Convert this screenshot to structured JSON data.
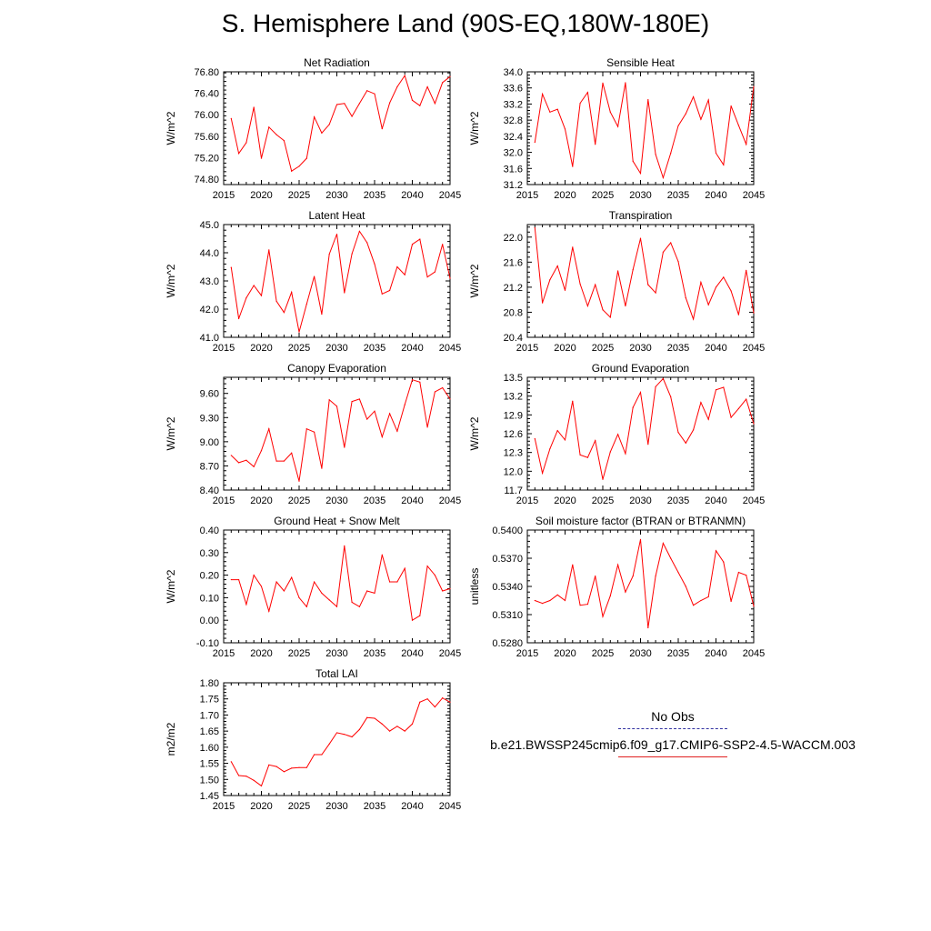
{
  "title": "S. Hemisphere Land (90S-EQ,180W-180E)",
  "colors": {
    "series": "#ff0000",
    "obs": "#3030a0",
    "axis": "#000000"
  },
  "legend": {
    "obs_label": "No Obs",
    "model_label": "b.e21.BWSSP245cmip6.f09_g17.CMIP6-SSP2-4.5-WACCM.003"
  },
  "chart_data": [
    {
      "type": "line",
      "title": "Net Radiation",
      "ylabel": "W/m^2",
      "xlim": [
        2015,
        2045
      ],
      "ylim": [
        74.7,
        76.8
      ],
      "xticks": [
        "2015",
        "2020",
        "2025",
        "2030",
        "2035",
        "2040",
        "2045"
      ],
      "yticks": [
        "74.80",
        "75.20",
        "75.60",
        "76.00",
        "76.40",
        "76.80"
      ],
      "x": [
        2016,
        2017,
        2018,
        2019,
        2020,
        2021,
        2022,
        2023,
        2024,
        2025,
        2026,
        2027,
        2028,
        2029,
        2030,
        2031,
        2032,
        2033,
        2034,
        2035,
        2036,
        2037,
        2038,
        2039,
        2040,
        2041,
        2042,
        2043,
        2044,
        2045
      ],
      "values": [
        75.93,
        75.28,
        75.48,
        76.14,
        75.19,
        75.77,
        75.63,
        75.52,
        74.95,
        75.04,
        75.19,
        75.96,
        75.66,
        75.82,
        76.19,
        76.21,
        75.97,
        76.21,
        76.45,
        76.39,
        75.74,
        76.22,
        76.52,
        76.73,
        76.27,
        76.17,
        76.52,
        76.21,
        76.6,
        76.71
      ]
    },
    {
      "type": "line",
      "title": "Sensible Heat",
      "ylabel": "W/m^2",
      "xlim": [
        2015,
        2045
      ],
      "ylim": [
        31.2,
        34.0
      ],
      "xticks": [
        "2015",
        "2020",
        "2025",
        "2030",
        "2035",
        "2040",
        "2045"
      ],
      "yticks": [
        "31.2",
        "31.6",
        "32.0",
        "32.4",
        "32.8",
        "33.2",
        "33.6",
        "34.0"
      ],
      "x": [
        2016,
        2017,
        2018,
        2019,
        2020,
        2021,
        2022,
        2023,
        2024,
        2025,
        2026,
        2027,
        2028,
        2029,
        2030,
        2031,
        2032,
        2033,
        2034,
        2035,
        2036,
        2037,
        2038,
        2039,
        2040,
        2041,
        2042,
        2043,
        2044,
        2045
      ],
      "values": [
        32.25,
        33.45,
        33.0,
        33.07,
        32.58,
        31.65,
        33.22,
        33.49,
        32.2,
        33.72,
        33.0,
        32.64,
        33.73,
        31.78,
        31.48,
        33.31,
        31.95,
        31.37,
        31.98,
        32.66,
        32.96,
        33.38,
        32.82,
        33.3,
        31.98,
        31.69,
        33.15,
        32.67,
        32.2,
        33.63
      ]
    },
    {
      "type": "line",
      "title": "Latent Heat",
      "ylabel": "W/m^2",
      "xlim": [
        2015,
        2045
      ],
      "ylim": [
        41.0,
        45.0
      ],
      "xticks": [
        "2015",
        "2020",
        "2025",
        "2030",
        "2035",
        "2040",
        "2045"
      ],
      "yticks": [
        "41.0",
        "42.0",
        "43.0",
        "44.0",
        "45.0"
      ],
      "x": [
        2016,
        2017,
        2018,
        2019,
        2020,
        2021,
        2022,
        2023,
        2024,
        2025,
        2026,
        2027,
        2028,
        2029,
        2030,
        2031,
        2032,
        2033,
        2034,
        2035,
        2036,
        2037,
        2038,
        2039,
        2040,
        2041,
        2042,
        2043,
        2044,
        2045
      ],
      "values": [
        43.48,
        41.66,
        42.4,
        42.84,
        42.48,
        44.1,
        42.28,
        41.88,
        42.6,
        41.19,
        42.18,
        43.16,
        41.82,
        43.95,
        44.66,
        42.58,
        43.96,
        44.76,
        44.36,
        43.6,
        42.54,
        42.66,
        43.5,
        43.22,
        44.3,
        44.48,
        43.14,
        43.32,
        44.3,
        43.09
      ]
    },
    {
      "type": "line",
      "title": "Transpiration",
      "ylabel": "W/m^2",
      "xlim": [
        2015,
        2045
      ],
      "ylim": [
        20.4,
        22.2
      ],
      "xticks": [
        "2015",
        "2020",
        "2025",
        "2030",
        "2035",
        "2040",
        "2045"
      ],
      "yticks": [
        "20.4",
        "20.8",
        "21.2",
        "21.6",
        "22.0"
      ],
      "x": [
        2016,
        2017,
        2018,
        2019,
        2020,
        2021,
        2022,
        2023,
        2024,
        2025,
        2026,
        2027,
        2028,
        2029,
        2030,
        2031,
        2032,
        2033,
        2034,
        2035,
        2036,
        2037,
        2038,
        2039,
        2040,
        2041,
        2042,
        2043,
        2044,
        2045
      ],
      "values": [
        22.15,
        20.95,
        21.32,
        21.54,
        21.15,
        21.84,
        21.25,
        20.9,
        21.24,
        20.84,
        20.72,
        21.46,
        20.9,
        21.48,
        21.98,
        21.24,
        21.11,
        21.76,
        21.91,
        21.61,
        21.03,
        20.69,
        21.28,
        20.92,
        21.2,
        21.36,
        21.14,
        20.76,
        21.47,
        20.79
      ]
    },
    {
      "type": "line",
      "title": "Canopy Evaporation",
      "ylabel": "W/m^2",
      "xlim": [
        2015,
        2045
      ],
      "ylim": [
        8.4,
        9.8
      ],
      "xticks": [
        "2015",
        "2020",
        "2025",
        "2030",
        "2035",
        "2040",
        "2045"
      ],
      "yticks": [
        "8.40",
        "8.70",
        "9.00",
        "9.30",
        "9.60"
      ],
      "x": [
        2016,
        2017,
        2018,
        2019,
        2020,
        2021,
        2022,
        2023,
        2024,
        2025,
        2026,
        2027,
        2028,
        2029,
        2030,
        2031,
        2032,
        2033,
        2034,
        2035,
        2036,
        2037,
        2038,
        2039,
        2040,
        2041,
        2042,
        2043,
        2044,
        2045
      ],
      "values": [
        8.83,
        8.74,
        8.77,
        8.69,
        8.89,
        9.16,
        8.76,
        8.76,
        8.86,
        8.51,
        9.16,
        9.12,
        8.67,
        9.52,
        9.44,
        8.93,
        9.5,
        9.53,
        9.28,
        9.38,
        9.06,
        9.35,
        9.13,
        9.46,
        9.77,
        9.74,
        9.18,
        9.62,
        9.67,
        9.53
      ]
    },
    {
      "type": "line",
      "title": "Ground Evaporation",
      "ylabel": "W/m^2",
      "xlim": [
        2015,
        2045
      ],
      "ylim": [
        11.7,
        13.5
      ],
      "xticks": [
        "2015",
        "2020",
        "2025",
        "2030",
        "2035",
        "2040",
        "2045"
      ],
      "yticks": [
        "11.7",
        "12.0",
        "12.3",
        "12.6",
        "12.9",
        "13.2",
        "13.5"
      ],
      "x": [
        2016,
        2017,
        2018,
        2019,
        2020,
        2021,
        2022,
        2023,
        2024,
        2025,
        2026,
        2027,
        2028,
        2029,
        2030,
        2031,
        2032,
        2033,
        2034,
        2035,
        2036,
        2037,
        2038,
        2039,
        2040,
        2041,
        2042,
        2043,
        2044,
        2045
      ],
      "values": [
        12.52,
        11.97,
        12.36,
        12.65,
        12.5,
        13.12,
        12.26,
        12.22,
        12.49,
        11.87,
        12.31,
        12.59,
        12.28,
        13.02,
        13.26,
        12.43,
        13.35,
        13.48,
        13.19,
        12.62,
        12.45,
        12.66,
        13.1,
        12.83,
        13.3,
        13.34,
        12.86,
        13.0,
        13.15,
        12.76
      ]
    },
    {
      "type": "line",
      "title": "Ground Heat + Snow Melt",
      "ylabel": "W/m^2",
      "xlim": [
        2015,
        2045
      ],
      "ylim": [
        -0.1,
        0.4
      ],
      "xticks": [
        "2015",
        "2020",
        "2025",
        "2030",
        "2035",
        "2040",
        "2045"
      ],
      "yticks": [
        "-0.10",
        "0.00",
        "0.10",
        "0.20",
        "0.30",
        "0.40"
      ],
      "x": [
        2016,
        2017,
        2018,
        2019,
        2020,
        2021,
        2022,
        2023,
        2024,
        2025,
        2026,
        2027,
        2028,
        2029,
        2030,
        2031,
        2032,
        2033,
        2034,
        2035,
        2036,
        2037,
        2038,
        2039,
        2040,
        2041,
        2042,
        2043,
        2044,
        2045
      ],
      "values": [
        0.18,
        0.18,
        0.07,
        0.2,
        0.15,
        0.04,
        0.17,
        0.13,
        0.19,
        0.1,
        0.06,
        0.17,
        0.12,
        0.09,
        0.06,
        0.33,
        0.08,
        0.06,
        0.13,
        0.12,
        0.29,
        0.17,
        0.17,
        0.23,
        0.0,
        0.02,
        0.24,
        0.2,
        0.13,
        0.14
      ]
    },
    {
      "type": "line",
      "title": "Soil moisture factor (BTRAN or BTRANMN)",
      "ylabel": "unitless",
      "xlim": [
        2015,
        2045
      ],
      "ylim": [
        0.528,
        0.54
      ],
      "xticks": [
        "2015",
        "2020",
        "2025",
        "2030",
        "2035",
        "2040",
        "2045"
      ],
      "yticks": [
        "0.5280",
        "0.5310",
        "0.5340",
        "0.5370",
        "0.5400"
      ],
      "x": [
        2016,
        2017,
        2018,
        2019,
        2020,
        2021,
        2022,
        2023,
        2024,
        2025,
        2026,
        2027,
        2028,
        2029,
        2030,
        2031,
        2032,
        2033,
        2034,
        2035,
        2036,
        2037,
        2038,
        2039,
        2040,
        2041,
        2042,
        2043,
        2044,
        2045
      ],
      "values": [
        0.5325,
        0.5322,
        0.5325,
        0.5331,
        0.5325,
        0.5363,
        0.532,
        0.5321,
        0.5351,
        0.5308,
        0.533,
        0.5363,
        0.5334,
        0.5351,
        0.539,
        0.5296,
        0.5351,
        0.5386,
        0.537,
        0.5355,
        0.534,
        0.532,
        0.5325,
        0.5329,
        0.5378,
        0.5366,
        0.5324,
        0.5355,
        0.5352,
        0.5319
      ]
    },
    {
      "type": "line",
      "title": "Total LAI",
      "ylabel": "m2/m2",
      "xlim": [
        2015,
        2045
      ],
      "ylim": [
        1.45,
        1.8
      ],
      "xticks": [
        "2015",
        "2020",
        "2025",
        "2030",
        "2035",
        "2040",
        "2045"
      ],
      "yticks": [
        "1.45",
        "1.50",
        "1.55",
        "1.60",
        "1.65",
        "1.70",
        "1.75",
        "1.80"
      ],
      "x": [
        2016,
        2017,
        2018,
        2019,
        2020,
        2021,
        2022,
        2023,
        2024,
        2025,
        2026,
        2027,
        2028,
        2029,
        2030,
        2031,
        2032,
        2033,
        2034,
        2035,
        2036,
        2037,
        2038,
        2039,
        2040,
        2041,
        2042,
        2043,
        2044,
        2045
      ],
      "values": [
        1.555,
        1.512,
        1.51,
        1.497,
        1.48,
        1.545,
        1.54,
        1.524,
        1.535,
        1.537,
        1.537,
        1.577,
        1.577,
        1.61,
        1.645,
        1.64,
        1.632,
        1.655,
        1.692,
        1.69,
        1.672,
        1.65,
        1.665,
        1.65,
        1.672,
        1.74,
        1.75,
        1.725,
        1.753,
        1.74
      ]
    }
  ]
}
